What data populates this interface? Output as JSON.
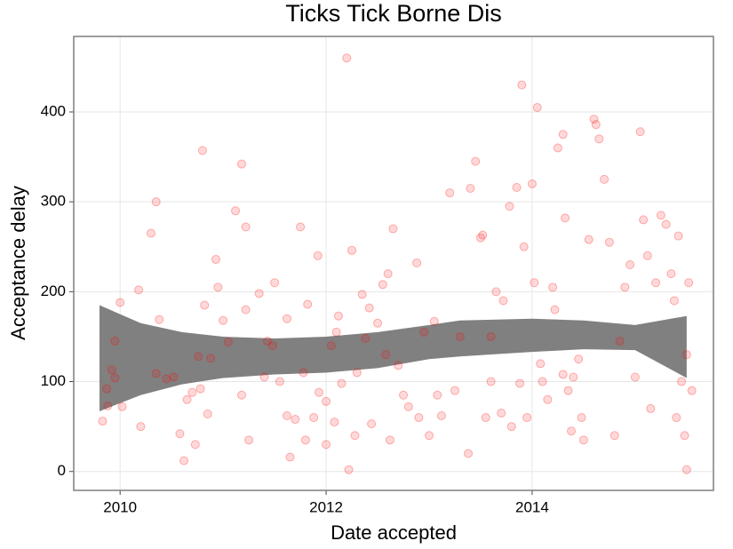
{
  "chart_data": {
    "type": "scatter",
    "title": "Ticks Tick Borne Dis",
    "x_label": "Date accepted",
    "y_label": "Acceptance delay",
    "color": "#ff0000",
    "alpha": 0.15,
    "grid": true,
    "xlim": [
      2009.55,
      2015.76
    ],
    "ylim": [
      -21,
      484
    ],
    "xticks": [
      2010,
      2012,
      2014
    ],
    "yticks": [
      0,
      100,
      200,
      300,
      400
    ],
    "x": [
      2009.83,
      2009.87,
      2009.92,
      2009.95,
      2009.88,
      2010.0,
      2009.95,
      2010.02,
      2010.18,
      2010.2,
      2010.3,
      2010.35,
      2010.38,
      2010.35,
      2010.45,
      2010.52,
      2010.58,
      2010.62,
      2010.65,
      2010.7,
      2010.73,
      2010.76,
      2010.78,
      2010.8,
      2010.82,
      2010.85,
      2010.88,
      2010.93,
      2010.95,
      2011.0,
      2011.05,
      2011.12,
      2011.18,
      2011.18,
      2011.22,
      2011.25,
      2011.22,
      2011.35,
      2011.4,
      2011.43,
      2011.48,
      2011.5,
      2011.55,
      2011.62,
      2011.65,
      2011.62,
      2011.7,
      2011.75,
      2011.78,
      2011.8,
      2011.82,
      2011.88,
      2011.92,
      2011.93,
      2012.0,
      2012.05,
      2012.0,
      2012.08,
      2012.1,
      2012.12,
      2012.15,
      2012.2,
      2012.22,
      2012.25,
      2012.28,
      2012.3,
      2012.35,
      2012.38,
      2012.42,
      2012.44,
      2012.5,
      2012.55,
      2012.58,
      2012.6,
      2012.62,
      2012.65,
      2012.7,
      2012.75,
      2012.8,
      2012.88,
      2012.9,
      2012.95,
      2013.0,
      2013.05,
      2013.08,
      2013.12,
      2013.2,
      2013.25,
      2013.3,
      2013.38,
      2013.45,
      2013.4,
      2013.5,
      2013.52,
      2013.55,
      2013.6,
      2013.65,
      2013.7,
      2013.72,
      2013.78,
      2013.85,
      2013.88,
      2013.9,
      2013.92,
      2013.95,
      2014.0,
      2014.02,
      2014.05,
      2014.08,
      2014.15,
      2014.2,
      2014.22,
      2014.25,
      2014.3,
      2014.32,
      2014.38,
      2014.4,
      2014.45,
      2014.48,
      2014.55,
      2014.6,
      2014.62,
      2014.65,
      2014.7,
      2014.75,
      2014.8,
      2014.85,
      2014.9,
      2014.95,
      2015.0,
      2015.05,
      2015.08,
      2015.12,
      2015.15,
      2015.2,
      2015.25,
      2015.3,
      2015.35,
      2015.38,
      2015.42,
      2015.45,
      2015.48,
      2015.5,
      2015.52,
      2015.55,
      2015.5,
      2014.1,
      2014.3,
      2014.35,
      2014.5,
      2013.8,
      2013.6,
      2015.4
    ],
    "values": [
      56,
      92,
      113,
      145,
      73,
      188,
      104,
      72,
      202,
      50,
      265,
      300,
      169,
      109,
      103,
      105,
      42,
      12,
      80,
      88,
      30,
      128,
      92,
      357,
      185,
      64,
      126,
      236,
      205,
      168,
      144,
      290,
      342,
      85,
      272,
      35,
      180,
      198,
      105,
      145,
      140,
      210,
      100,
      170,
      16,
      62,
      58,
      272,
      110,
      35,
      186,
      60,
      240,
      88,
      78,
      140,
      30,
      55,
      155,
      173,
      98,
      460,
      2,
      246,
      40,
      110,
      197,
      148,
      182,
      53,
      165,
      208,
      130,
      220,
      35,
      270,
      118,
      85,
      72,
      232,
      60,
      155,
      40,
      167,
      85,
      62,
      310,
      90,
      150,
      20,
      345,
      315,
      260,
      263,
      60,
      150,
      200,
      65,
      190,
      295,
      316,
      98,
      430,
      250,
      60,
      320,
      210,
      405,
      120,
      80,
      205,
      180,
      360,
      375,
      282,
      45,
      105,
      125,
      60,
      258,
      392,
      386,
      370,
      325,
      255,
      40,
      145,
      205,
      230,
      105,
      378,
      280,
      240,
      70,
      210,
      285,
      275,
      220,
      190,
      262,
      100,
      40,
      2,
      210,
      90,
      130,
      100,
      108,
      90,
      35,
      50,
      100,
      60
    ],
    "band": {
      "color": "#808080",
      "x": [
        2009.8,
        2010.2,
        2010.6,
        2011.0,
        2011.5,
        2012.0,
        2012.5,
        2013.0,
        2013.3,
        2014.0,
        2014.5,
        2015.0,
        2015.5
      ],
      "upper": [
        185,
        165,
        155,
        150,
        148,
        150,
        155,
        163,
        168,
        170,
        168,
        163,
        173
      ],
      "lower": [
        67,
        85,
        97,
        104,
        108,
        110,
        115,
        125,
        128,
        133,
        136,
        135,
        104
      ]
    }
  }
}
